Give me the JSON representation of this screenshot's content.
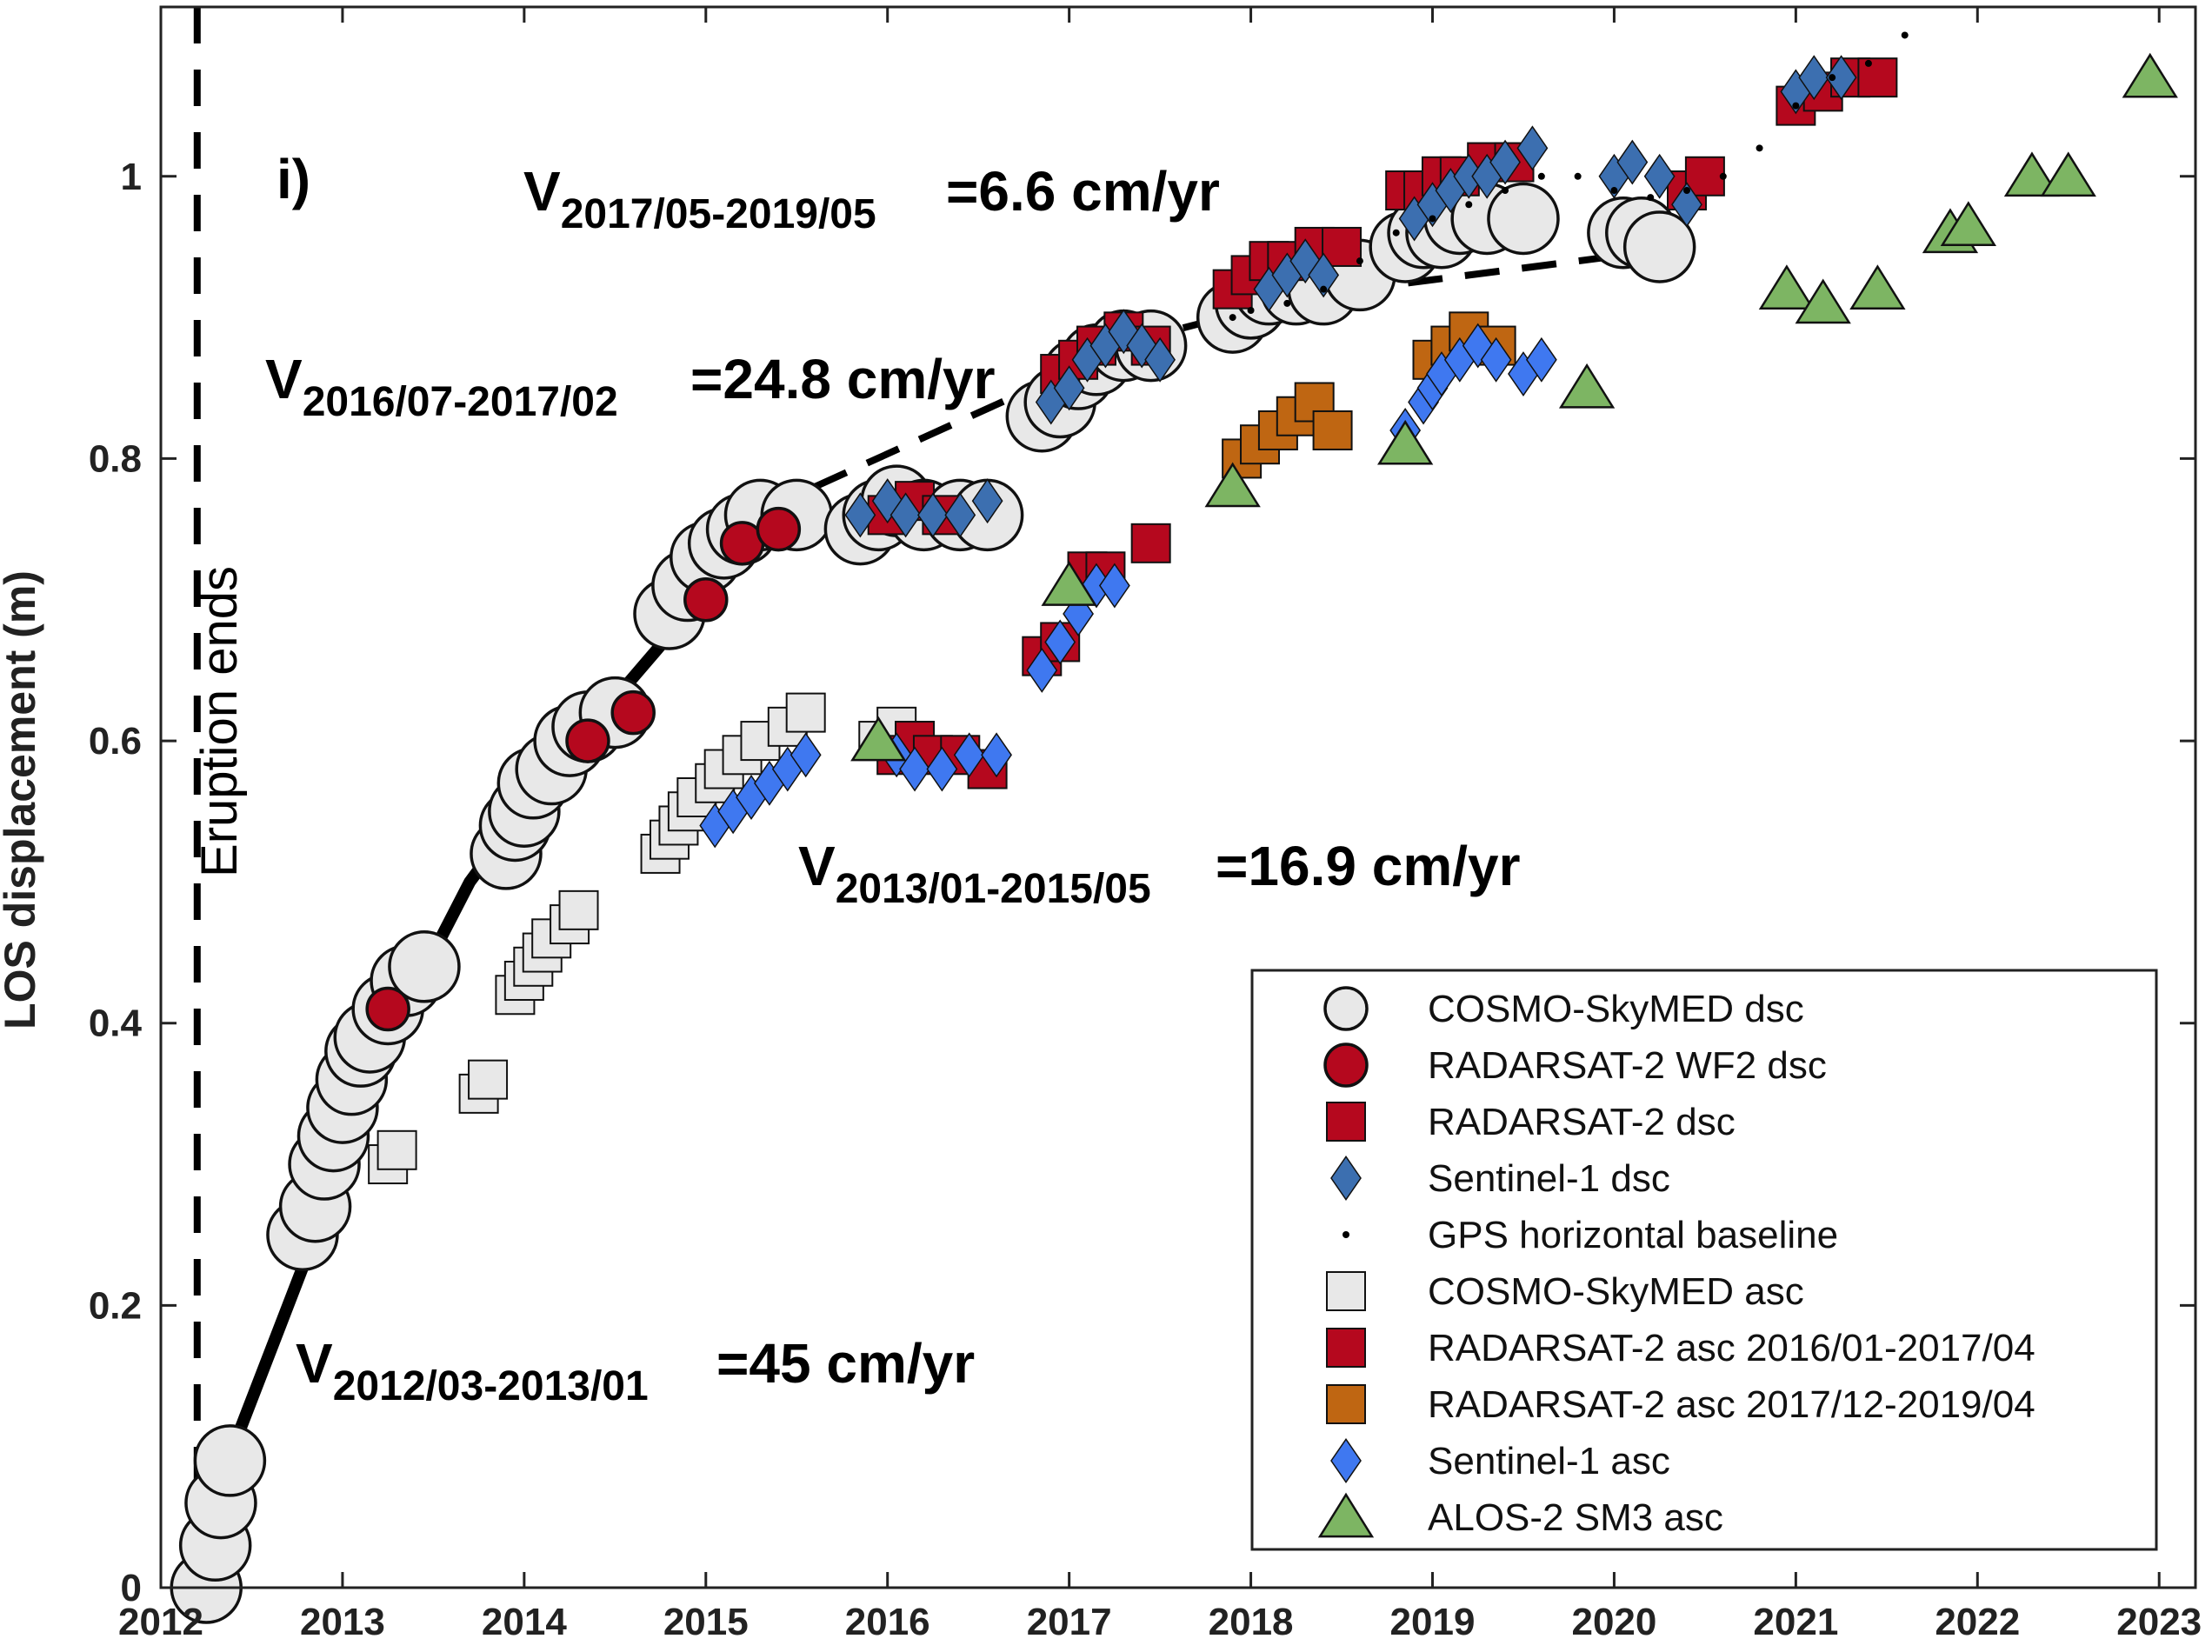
{
  "chart_data": {
    "type": "scatter",
    "panel_label": "i)",
    "ylabel": "LOS displacement (m)",
    "xlim": [
      2012,
      2023.2
    ],
    "ylim": [
      0,
      1.12
    ],
    "x_ticks": [
      2012,
      2013,
      2014,
      2015,
      2016,
      2017,
      2018,
      2019,
      2020,
      2021,
      2022,
      2023
    ],
    "y_ticks": [
      0,
      0.2,
      0.4,
      0.6,
      0.8,
      1
    ],
    "eruption_line": {
      "x": 2012.2,
      "label": "Eruption ends"
    },
    "annotations": [
      {
        "main": "V",
        "sub": "2012/03-2013/01",
        "rate": "=45 cm/yr"
      },
      {
        "main": "V",
        "sub": "2013/01-2015/05",
        "rate": "=16.9 cm/yr"
      },
      {
        "main": "V",
        "sub": "2016/07-2017/02",
        "rate": "=24.8 cm/yr"
      },
      {
        "main": "V",
        "sub": "2017/05-2019/05",
        "rate": "=6.6 cm/yr"
      }
    ],
    "fit_solid": [
      [
        2012.2,
        0.0
      ],
      [
        2012.4,
        0.1
      ],
      [
        2012.7,
        0.2
      ],
      [
        2013.0,
        0.3
      ],
      [
        2013.3,
        0.4
      ],
      [
        2013.7,
        0.5
      ],
      [
        2014.1,
        0.57
      ],
      [
        2014.5,
        0.63
      ],
      [
        2014.9,
        0.69
      ],
      [
        2015.3,
        0.74
      ],
      [
        2015.6,
        0.77
      ]
    ],
    "fit_dashed": [
      [
        2015.6,
        0.78
      ],
      [
        2016.2,
        0.815
      ],
      [
        2016.8,
        0.85
      ],
      [
        2017.4,
        0.885
      ],
      [
        2018.0,
        0.905
      ],
      [
        2018.6,
        0.92
      ],
      [
        2019.2,
        0.93
      ],
      [
        2019.8,
        0.94
      ],
      [
        2020.1,
        0.945
      ]
    ],
    "legend_position": "bottom-right",
    "series": [
      {
        "name": "COSMO-SkyMED dsc",
        "marker": "circle",
        "size": "large",
        "fill": "#e8e8e8",
        "points": [
          [
            2012.25,
            0.0
          ],
          [
            2012.3,
            0.03
          ],
          [
            2012.33,
            0.06
          ],
          [
            2012.38,
            0.09
          ],
          [
            2012.78,
            0.25
          ],
          [
            2012.85,
            0.27
          ],
          [
            2012.9,
            0.3
          ],
          [
            2012.95,
            0.32
          ],
          [
            2013.0,
            0.34
          ],
          [
            2013.05,
            0.36
          ],
          [
            2013.1,
            0.38
          ],
          [
            2013.15,
            0.39
          ],
          [
            2013.25,
            0.41
          ],
          [
            2013.35,
            0.43
          ],
          [
            2013.45,
            0.44
          ],
          [
            2013.9,
            0.52
          ],
          [
            2013.95,
            0.54
          ],
          [
            2014.0,
            0.55
          ],
          [
            2014.05,
            0.57
          ],
          [
            2014.15,
            0.58
          ],
          [
            2014.25,
            0.6
          ],
          [
            2014.35,
            0.61
          ],
          [
            2014.5,
            0.62
          ],
          [
            2014.8,
            0.69
          ],
          [
            2014.9,
            0.71
          ],
          [
            2015.0,
            0.73
          ],
          [
            2015.1,
            0.74
          ],
          [
            2015.2,
            0.75
          ],
          [
            2015.3,
            0.76
          ],
          [
            2015.5,
            0.76
          ],
          [
            2015.85,
            0.75
          ],
          [
            2015.95,
            0.76
          ],
          [
            2016.05,
            0.77
          ],
          [
            2016.2,
            0.76
          ],
          [
            2016.4,
            0.76
          ],
          [
            2016.55,
            0.76
          ],
          [
            2016.85,
            0.83
          ],
          [
            2016.95,
            0.84
          ],
          [
            2017.05,
            0.86
          ],
          [
            2017.15,
            0.87
          ],
          [
            2017.3,
            0.88
          ],
          [
            2017.45,
            0.88
          ],
          [
            2017.9,
            0.9
          ],
          [
            2018.0,
            0.91
          ],
          [
            2018.1,
            0.92
          ],
          [
            2018.25,
            0.92
          ],
          [
            2018.4,
            0.92
          ],
          [
            2018.6,
            0.93
          ],
          [
            2018.85,
            0.95
          ],
          [
            2018.95,
            0.96
          ],
          [
            2019.05,
            0.96
          ],
          [
            2019.15,
            0.97
          ],
          [
            2019.3,
            0.97
          ],
          [
            2019.5,
            0.97
          ],
          [
            2020.05,
            0.96
          ],
          [
            2020.15,
            0.96
          ],
          [
            2020.25,
            0.95
          ]
        ]
      },
      {
        "name": "RADARSAT-2 WF2 dsc",
        "marker": "circle",
        "size": "medium",
        "fill": "#b5081e",
        "points": [
          [
            2013.25,
            0.41
          ],
          [
            2014.35,
            0.6
          ],
          [
            2014.6,
            0.62
          ],
          [
            2015.0,
            0.7
          ],
          [
            2015.2,
            0.74
          ],
          [
            2015.4,
            0.75
          ]
        ]
      },
      {
        "name": "RADARSAT-2 dsc",
        "marker": "square",
        "fill": "#b5081e",
        "points": [
          [
            2016.0,
            0.76
          ],
          [
            2016.15,
            0.77
          ],
          [
            2016.3,
            0.76
          ],
          [
            2016.95,
            0.86
          ],
          [
            2017.05,
            0.87
          ],
          [
            2017.15,
            0.88
          ],
          [
            2017.3,
            0.89
          ],
          [
            2017.45,
            0.88
          ],
          [
            2017.9,
            0.92
          ],
          [
            2018.0,
            0.93
          ],
          [
            2018.1,
            0.94
          ],
          [
            2018.2,
            0.94
          ],
          [
            2018.35,
            0.95
          ],
          [
            2018.5,
            0.95
          ],
          [
            2018.85,
            0.99
          ],
          [
            2018.95,
            0.99
          ],
          [
            2019.05,
            1.0
          ],
          [
            2019.15,
            1.0
          ],
          [
            2019.3,
            1.01
          ],
          [
            2019.45,
            1.01
          ],
          [
            2020.4,
            0.99
          ],
          [
            2020.5,
            1.0
          ],
          [
            2021.0,
            1.05
          ],
          [
            2021.15,
            1.06
          ],
          [
            2021.3,
            1.07
          ],
          [
            2021.45,
            1.07
          ]
        ]
      },
      {
        "name": "Sentinel-1 dsc",
        "marker": "diamond",
        "fill": "#3c6fb0",
        "points": [
          [
            2015.85,
            0.76
          ],
          [
            2016.0,
            0.77
          ],
          [
            2016.1,
            0.76
          ],
          [
            2016.25,
            0.76
          ],
          [
            2016.4,
            0.76
          ],
          [
            2016.55,
            0.77
          ],
          [
            2016.9,
            0.84
          ],
          [
            2017.0,
            0.85
          ],
          [
            2017.1,
            0.87
          ],
          [
            2017.2,
            0.88
          ],
          [
            2017.3,
            0.89
          ],
          [
            2017.4,
            0.88
          ],
          [
            2017.5,
            0.87
          ],
          [
            2018.1,
            0.92
          ],
          [
            2018.2,
            0.93
          ],
          [
            2018.3,
            0.94
          ],
          [
            2018.4,
            0.93
          ],
          [
            2018.9,
            0.97
          ],
          [
            2019.0,
            0.98
          ],
          [
            2019.1,
            0.99
          ],
          [
            2019.2,
            1.0
          ],
          [
            2019.3,
            1.0
          ],
          [
            2019.4,
            1.01
          ],
          [
            2019.55,
            1.02
          ],
          [
            2020.0,
            1.0
          ],
          [
            2020.1,
            1.01
          ],
          [
            2020.25,
            1.0
          ],
          [
            2020.4,
            0.98
          ],
          [
            2021.0,
            1.06
          ],
          [
            2021.1,
            1.07
          ],
          [
            2021.25,
            1.07
          ]
        ]
      },
      {
        "name": "GPS horizontal baseline",
        "marker": "dot",
        "fill": "#000000",
        "points": [
          [
            2017.9,
            0.9
          ],
          [
            2018.0,
            0.905
          ],
          [
            2018.2,
            0.91
          ],
          [
            2018.4,
            0.92
          ],
          [
            2018.6,
            0.94
          ],
          [
            2018.8,
            0.96
          ],
          [
            2019.0,
            0.97
          ],
          [
            2019.2,
            0.98
          ],
          [
            2019.4,
            0.99
          ],
          [
            2019.6,
            1.0
          ],
          [
            2019.8,
            1.0
          ],
          [
            2020.0,
            0.99
          ],
          [
            2020.2,
            0.985
          ],
          [
            2020.4,
            0.99
          ],
          [
            2020.6,
            1.0
          ],
          [
            2020.8,
            1.02
          ],
          [
            2021.0,
            1.05
          ],
          [
            2021.2,
            1.07
          ],
          [
            2021.4,
            1.08
          ],
          [
            2021.6,
            1.1
          ]
        ]
      },
      {
        "name": "COSMO-SkyMED asc",
        "marker": "square",
        "fill": "#e8e8e8",
        "points": [
          [
            2013.25,
            0.3
          ],
          [
            2013.3,
            0.31
          ],
          [
            2013.75,
            0.35
          ],
          [
            2013.8,
            0.36
          ],
          [
            2013.95,
            0.42
          ],
          [
            2014.0,
            0.43
          ],
          [
            2014.05,
            0.44
          ],
          [
            2014.1,
            0.45
          ],
          [
            2014.15,
            0.46
          ],
          [
            2014.25,
            0.47
          ],
          [
            2014.3,
            0.48
          ],
          [
            2014.75,
            0.52
          ],
          [
            2014.8,
            0.53
          ],
          [
            2014.85,
            0.54
          ],
          [
            2014.9,
            0.55
          ],
          [
            2014.95,
            0.56
          ],
          [
            2015.05,
            0.57
          ],
          [
            2015.1,
            0.58
          ],
          [
            2015.2,
            0.59
          ],
          [
            2015.3,
            0.6
          ],
          [
            2015.45,
            0.61
          ],
          [
            2015.55,
            0.62
          ],
          [
            2015.95,
            0.6
          ],
          [
            2016.05,
            0.61
          ],
          [
            2016.15,
            0.6
          ]
        ]
      },
      {
        "name": "RADARSAT-2 asc 2016/01-2017/04",
        "marker": "square",
        "fill": "#b5081e",
        "points": [
          [
            2016.05,
            0.59
          ],
          [
            2016.15,
            0.6
          ],
          [
            2016.25,
            0.59
          ],
          [
            2016.4,
            0.59
          ],
          [
            2016.55,
            0.58
          ],
          [
            2016.85,
            0.66
          ],
          [
            2016.95,
            0.67
          ],
          [
            2017.1,
            0.72
          ],
          [
            2017.2,
            0.72
          ],
          [
            2017.45,
            0.74
          ]
        ]
      },
      {
        "name": "RADARSAT-2 asc 2017/12-2019/04",
        "marker": "square",
        "fill": "#bf6612",
        "points": [
          [
            2017.95,
            0.8
          ],
          [
            2018.05,
            0.81
          ],
          [
            2018.15,
            0.82
          ],
          [
            2018.25,
            0.83
          ],
          [
            2018.35,
            0.84
          ],
          [
            2018.45,
            0.82
          ],
          [
            2019.0,
            0.87
          ],
          [
            2019.1,
            0.88
          ],
          [
            2019.2,
            0.89
          ],
          [
            2019.35,
            0.88
          ]
        ]
      },
      {
        "name": "Sentinel-1 asc",
        "marker": "diamond",
        "fill": "#3f78f0",
        "points": [
          [
            2015.05,
            0.54
          ],
          [
            2015.15,
            0.55
          ],
          [
            2015.25,
            0.56
          ],
          [
            2015.35,
            0.57
          ],
          [
            2015.45,
            0.58
          ],
          [
            2015.55,
            0.59
          ],
          [
            2016.05,
            0.59
          ],
          [
            2016.15,
            0.58
          ],
          [
            2016.3,
            0.58
          ],
          [
            2016.45,
            0.59
          ],
          [
            2016.6,
            0.59
          ],
          [
            2016.85,
            0.65
          ],
          [
            2016.95,
            0.67
          ],
          [
            2017.05,
            0.69
          ],
          [
            2017.15,
            0.71
          ],
          [
            2017.25,
            0.71
          ],
          [
            2018.85,
            0.82
          ],
          [
            2018.95,
            0.84
          ],
          [
            2019.0,
            0.85
          ],
          [
            2019.05,
            0.86
          ],
          [
            2019.15,
            0.87
          ],
          [
            2019.25,
            0.88
          ],
          [
            2019.35,
            0.87
          ],
          [
            2019.5,
            0.86
          ],
          [
            2019.6,
            0.87
          ]
        ]
      },
      {
        "name": "ALOS-2 SM3 asc",
        "marker": "triangle",
        "fill": "#7db563",
        "points": [
          [
            2015.95,
            0.6
          ],
          [
            2017.0,
            0.71
          ],
          [
            2017.9,
            0.78
          ],
          [
            2018.85,
            0.81
          ],
          [
            2019.85,
            0.85
          ],
          [
            2020.95,
            0.92
          ],
          [
            2021.15,
            0.91
          ],
          [
            2021.45,
            0.92
          ],
          [
            2021.85,
            0.96
          ],
          [
            2021.95,
            0.965
          ],
          [
            2022.3,
            1.0
          ],
          [
            2022.5,
            1.0
          ],
          [
            2022.95,
            1.07
          ]
        ]
      }
    ]
  }
}
